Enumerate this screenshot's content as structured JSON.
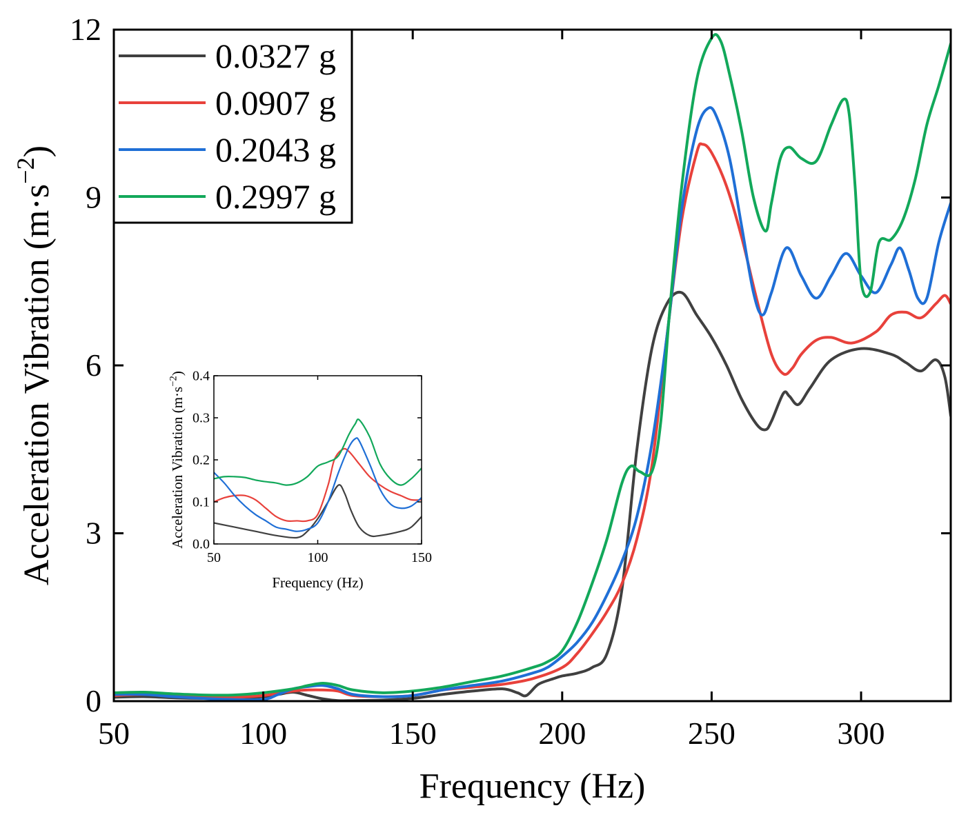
{
  "colors": {
    "black": "#404040",
    "red": "#e8413b",
    "blue": "#1f6fd6",
    "green": "#12a85a"
  },
  "chart_data": [
    {
      "id": "main",
      "type": "line",
      "xlabel": "Frequency (Hz)",
      "ylabel": "Acceleration Vibration (m·s",
      "ylabel_sup": "−2",
      "ylabel_close": ")",
      "xlim": [
        50,
        330
      ],
      "ylim": [
        0,
        12
      ],
      "xticks": [
        50,
        100,
        150,
        200,
        250,
        300
      ],
      "yticks": [
        0,
        3,
        6,
        9,
        12
      ],
      "grid": false,
      "legend_position": "top-left",
      "series": [
        {
          "name": "0.0327 g",
          "color": "#404040",
          "x": [
            50,
            60,
            70,
            80,
            90,
            100,
            105,
            110,
            115,
            120,
            125,
            130,
            140,
            150,
            160,
            170,
            180,
            185,
            188,
            192,
            197,
            200,
            205,
            210,
            215,
            220,
            225,
            230,
            235,
            240,
            245,
            250,
            255,
            260,
            265,
            268,
            270,
            274,
            276,
            279,
            283,
            290,
            300,
            310,
            315,
            320,
            325,
            328,
            330
          ],
          "y": [
            0.07,
            0.08,
            0.06,
            0.05,
            0.05,
            0.08,
            0.12,
            0.16,
            0.1,
            0.04,
            0.01,
            0.01,
            0.02,
            0.05,
            0.12,
            0.18,
            0.22,
            0.15,
            0.1,
            0.3,
            0.4,
            0.45,
            0.5,
            0.6,
            0.85,
            2.0,
            4.5,
            6.3,
            7.1,
            7.3,
            6.9,
            6.5,
            6.0,
            5.4,
            4.95,
            4.85,
            5.0,
            5.5,
            5.45,
            5.3,
            5.6,
            6.1,
            6.3,
            6.2,
            6.05,
            5.9,
            6.1,
            5.8,
            5.1
          ]
        },
        {
          "name": "0.0907 g",
          "color": "#e8413b",
          "x": [
            50,
            60,
            70,
            80,
            90,
            100,
            110,
            115,
            120,
            125,
            130,
            140,
            150,
            160,
            170,
            180,
            190,
            200,
            205,
            210,
            215,
            220,
            225,
            230,
            235,
            240,
            245,
            247,
            250,
            255,
            260,
            265,
            270,
            274,
            277,
            280,
            285,
            290,
            297,
            305,
            310,
            315,
            320,
            325,
            328,
            330
          ],
          "y": [
            0.1,
            0.12,
            0.09,
            0.07,
            0.07,
            0.1,
            0.18,
            0.2,
            0.2,
            0.18,
            0.1,
            0.08,
            0.1,
            0.2,
            0.25,
            0.3,
            0.4,
            0.6,
            0.85,
            1.2,
            1.6,
            2.1,
            2.9,
            4.2,
            6.5,
            8.6,
            9.8,
            9.95,
            9.8,
            9.2,
            8.3,
            7.2,
            6.2,
            5.85,
            5.95,
            6.2,
            6.45,
            6.5,
            6.4,
            6.6,
            6.9,
            6.95,
            6.85,
            7.1,
            7.25,
            7.1
          ]
        },
        {
          "name": "0.2043 g",
          "color": "#1f6fd6",
          "x": [
            50,
            60,
            70,
            80,
            90,
            100,
            105,
            110,
            115,
            120,
            125,
            130,
            140,
            150,
            160,
            170,
            180,
            190,
            195,
            200,
            205,
            210,
            215,
            220,
            225,
            230,
            235,
            240,
            245,
            249,
            252,
            256,
            260,
            264,
            267,
            270,
            275,
            280,
            285,
            290,
            295,
            300,
            305,
            310,
            313,
            316,
            319,
            322,
            326,
            330
          ],
          "y": [
            0.12,
            0.12,
            0.08,
            0.05,
            0.03,
            0.03,
            0.12,
            0.22,
            0.26,
            0.28,
            0.22,
            0.12,
            0.08,
            0.1,
            0.2,
            0.28,
            0.36,
            0.5,
            0.6,
            0.8,
            1.05,
            1.4,
            1.9,
            2.5,
            3.3,
            4.6,
            6.5,
            8.8,
            10.2,
            10.6,
            10.4,
            9.7,
            8.5,
            7.3,
            6.9,
            7.3,
            8.1,
            7.6,
            7.2,
            7.6,
            8.0,
            7.6,
            7.3,
            7.8,
            8.1,
            7.7,
            7.2,
            7.2,
            8.2,
            8.9
          ]
        },
        {
          "name": "0.2997 g",
          "color": "#12a85a",
          "x": [
            50,
            60,
            70,
            80,
            90,
            100,
            110,
            115,
            120,
            125,
            130,
            140,
            150,
            160,
            170,
            180,
            190,
            195,
            200,
            205,
            210,
            215,
            220,
            223,
            226,
            230,
            233,
            236,
            240,
            245,
            250,
            253,
            256,
            260,
            264,
            268,
            270,
            273,
            276,
            280,
            285,
            290,
            294,
            296,
            298,
            300,
            303,
            306,
            310,
            314,
            318,
            322,
            326,
            330
          ],
          "y": [
            0.15,
            0.16,
            0.13,
            0.11,
            0.11,
            0.15,
            0.22,
            0.28,
            0.32,
            0.28,
            0.2,
            0.15,
            0.18,
            0.25,
            0.35,
            0.45,
            0.6,
            0.7,
            0.9,
            1.4,
            2.1,
            2.9,
            3.9,
            4.2,
            4.1,
            4.1,
            5.0,
            7.0,
            9.2,
            11.1,
            11.85,
            11.8,
            11.2,
            10.2,
            9.0,
            8.4,
            8.9,
            9.7,
            9.9,
            9.7,
            9.65,
            10.3,
            10.75,
            10.5,
            9.2,
            7.5,
            7.3,
            8.2,
            8.25,
            8.6,
            9.3,
            10.3,
            11.0,
            11.75
          ]
        }
      ]
    },
    {
      "id": "inset",
      "type": "line",
      "xlabel": "Frequency (Hz)",
      "ylabel": "Acceleration Vibration (m·s",
      "ylabel_sup": "−2",
      "ylabel_close": ")",
      "xlim": [
        50,
        150
      ],
      "ylim": [
        0,
        0.4
      ],
      "xticks": [
        50,
        100,
        150
      ],
      "yticks": [
        0.0,
        0.1,
        0.2,
        0.3,
        0.4
      ],
      "ytick_labels": [
        "0.0",
        "0.1",
        "0.2",
        "0.3",
        "0.4"
      ],
      "grid": false,
      "series": [
        {
          "name": "0.0327 g",
          "color": "#404040",
          "x": [
            50,
            60,
            70,
            80,
            90,
            95,
            100,
            105,
            110,
            113,
            116,
            120,
            125,
            130,
            140,
            145,
            150
          ],
          "y": [
            0.05,
            0.04,
            0.03,
            0.02,
            0.015,
            0.03,
            0.06,
            0.1,
            0.14,
            0.12,
            0.08,
            0.04,
            0.02,
            0.02,
            0.03,
            0.04,
            0.065
          ]
        },
        {
          "name": "0.0907 g",
          "color": "#e8413b",
          "x": [
            50,
            55,
            60,
            65,
            70,
            75,
            80,
            85,
            90,
            95,
            100,
            105,
            108,
            112,
            115,
            120,
            125,
            130,
            135,
            140,
            145,
            150
          ],
          "y": [
            0.1,
            0.11,
            0.115,
            0.115,
            0.105,
            0.085,
            0.065,
            0.055,
            0.055,
            0.055,
            0.07,
            0.14,
            0.2,
            0.225,
            0.22,
            0.19,
            0.16,
            0.14,
            0.125,
            0.115,
            0.105,
            0.105
          ]
        },
        {
          "name": "0.2043 g",
          "color": "#1f6fd6",
          "x": [
            50,
            55,
            60,
            65,
            70,
            75,
            80,
            85,
            90,
            95,
            100,
            105,
            110,
            115,
            118,
            120,
            125,
            130,
            135,
            140,
            145,
            150
          ],
          "y": [
            0.17,
            0.145,
            0.115,
            0.09,
            0.07,
            0.055,
            0.04,
            0.035,
            0.03,
            0.035,
            0.05,
            0.1,
            0.17,
            0.23,
            0.25,
            0.245,
            0.19,
            0.13,
            0.095,
            0.085,
            0.09,
            0.11
          ]
        },
        {
          "name": "0.2997 g",
          "color": "#12a85a",
          "x": [
            50,
            55,
            60,
            65,
            70,
            75,
            80,
            85,
            90,
            95,
            100,
            105,
            110,
            115,
            118,
            120,
            125,
            130,
            135,
            140,
            145,
            150
          ],
          "y": [
            0.155,
            0.16,
            0.16,
            0.158,
            0.152,
            0.148,
            0.145,
            0.14,
            0.145,
            0.16,
            0.185,
            0.195,
            0.21,
            0.26,
            0.285,
            0.295,
            0.255,
            0.19,
            0.155,
            0.14,
            0.155,
            0.18
          ]
        }
      ]
    }
  ]
}
